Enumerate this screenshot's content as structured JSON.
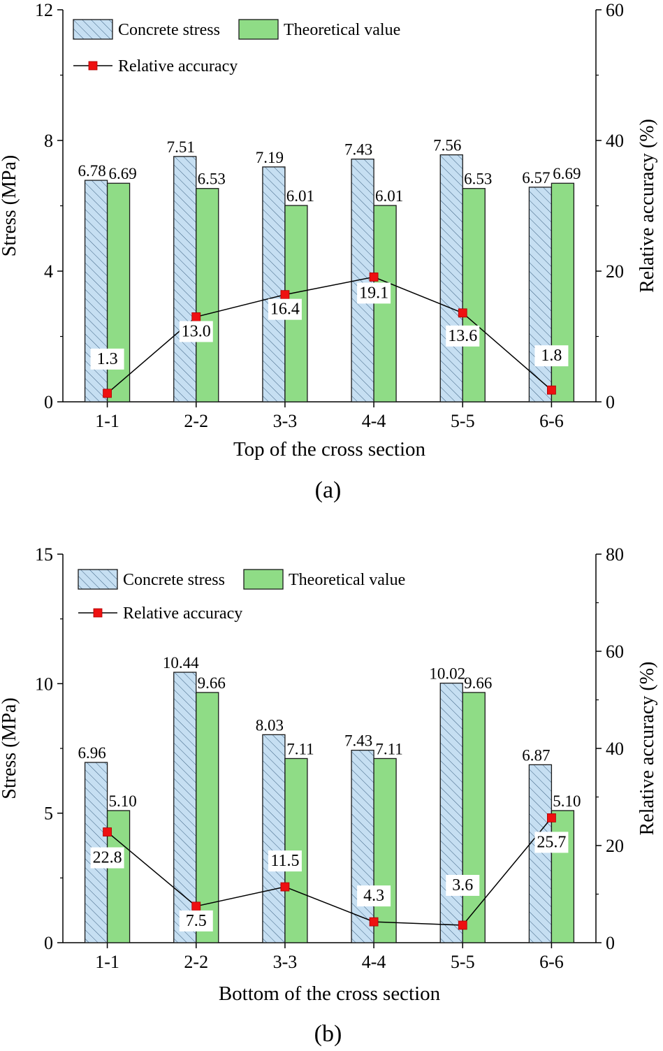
{
  "chart_data": [
    {
      "type": "bar",
      "panel_label": "(a)",
      "xlabel": "Top of the cross section",
      "ylabel": "Stress (MPa)",
      "y2label": "Relative accuracy (%)",
      "categories": [
        "1-1",
        "2-2",
        "3-3",
        "4-4",
        "5-5",
        "6-6"
      ],
      "ylim": [
        0,
        12
      ],
      "yticks": [
        "0",
        "4",
        "8",
        "12"
      ],
      "y2lim": [
        0,
        60
      ],
      "y2ticks": [
        "0",
        "20",
        "40",
        "60"
      ],
      "series": [
        {
          "name": "Concrete stress",
          "kind": "bar",
          "values": [
            6.78,
            7.51,
            7.19,
            7.43,
            7.56,
            6.57
          ],
          "labels": [
            "6.78",
            "7.51",
            "7.19",
            "7.43",
            "7.56",
            "6.57"
          ]
        },
        {
          "name": "Theoretical value",
          "kind": "bar",
          "values": [
            6.69,
            6.53,
            6.01,
            6.01,
            6.53,
            6.69
          ],
          "labels": [
            "6.69",
            "6.53",
            "6.01",
            "6.01",
            "6.53",
            "6.69"
          ]
        },
        {
          "name": "Relative accuracy",
          "kind": "line",
          "axis": "right",
          "values": [
            1.3,
            13.0,
            16.4,
            19.1,
            13.6,
            1.8
          ],
          "labels": [
            "1.3",
            "13.0",
            "16.4",
            "19.1",
            "13.6",
            "1.8"
          ]
        }
      ]
    },
    {
      "type": "bar",
      "panel_label": "(b)",
      "xlabel": "Bottom of the cross section",
      "ylabel": "Stress (MPa)",
      "y2label": "Relative accuracy (%)",
      "categories": [
        "1-1",
        "2-2",
        "3-3",
        "4-4",
        "5-5",
        "6-6"
      ],
      "ylim": [
        0,
        15
      ],
      "yticks": [
        "0",
        "5",
        "10",
        "15"
      ],
      "y2lim": [
        0,
        80
      ],
      "y2ticks": [
        "0",
        "20",
        "40",
        "60",
        "80"
      ],
      "series": [
        {
          "name": "Concrete stress",
          "kind": "bar",
          "values": [
            6.96,
            10.44,
            8.03,
            7.43,
            10.02,
            6.87
          ],
          "labels": [
            "6.96",
            "10.44",
            "8.03",
            "7.43",
            "10.02",
            "6.87"
          ]
        },
        {
          "name": "Theoretical value",
          "kind": "bar",
          "values": [
            5.1,
            9.66,
            7.11,
            7.11,
            9.66,
            5.1
          ],
          "labels": [
            "5.10",
            "9.66",
            "7.11",
            "7.11",
            "9.66",
            "5.10"
          ]
        },
        {
          "name": "Relative accuracy",
          "kind": "line",
          "axis": "right",
          "values": [
            22.8,
            7.5,
            11.5,
            4.3,
            3.6,
            25.7
          ],
          "labels": [
            "22.8",
            "7.5",
            "11.5",
            "4.3",
            "3.6",
            "25.7"
          ]
        }
      ]
    }
  ]
}
